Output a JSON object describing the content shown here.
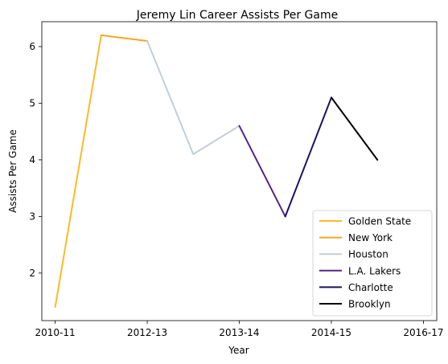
{
  "chart_data": {
    "type": "line",
    "title": "Jeremy Lin Career Assists Per Game",
    "xlabel": "Year",
    "ylabel": "Assists Per Game",
    "x_index_range": [
      -0.29,
      8.29
    ],
    "ylim": [
      1.16,
      6.44
    ],
    "yticks": [
      2,
      3,
      4,
      5,
      6
    ],
    "xticks": [
      {
        "index": 0,
        "label": "2010-11"
      },
      {
        "index": 2,
        "label": "2012-13"
      },
      {
        "index": 4,
        "label": "2013-14"
      },
      {
        "index": 6,
        "label": "2014-15"
      },
      {
        "index": 8,
        "label": "2016-17"
      }
    ],
    "grid": false,
    "legend_position": "lower-right",
    "series": [
      {
        "name": "Golden State",
        "color": "#FDB927",
        "points": [
          [
            0,
            1.4
          ],
          [
            1,
            6.2
          ]
        ]
      },
      {
        "name": "New York",
        "color": "#F5A623",
        "points": [
          [
            1,
            6.2
          ],
          [
            2,
            6.1
          ]
        ]
      },
      {
        "name": "Houston",
        "color": "#C4CED4",
        "points": [
          [
            2,
            6.1
          ],
          [
            3,
            4.1
          ],
          [
            4,
            4.6
          ]
        ]
      },
      {
        "name": "L.A. Lakers",
        "color": "#552583",
        "points": [
          [
            4,
            4.6
          ],
          [
            5,
            3.0
          ]
        ]
      },
      {
        "name": "Charlotte",
        "color": "#1D1160",
        "points": [
          [
            5,
            3.0
          ],
          [
            6,
            5.1
          ]
        ]
      },
      {
        "name": "Brooklyn",
        "color": "#000000",
        "points": [
          [
            6,
            5.1
          ],
          [
            7,
            4.0
          ]
        ]
      }
    ]
  }
}
